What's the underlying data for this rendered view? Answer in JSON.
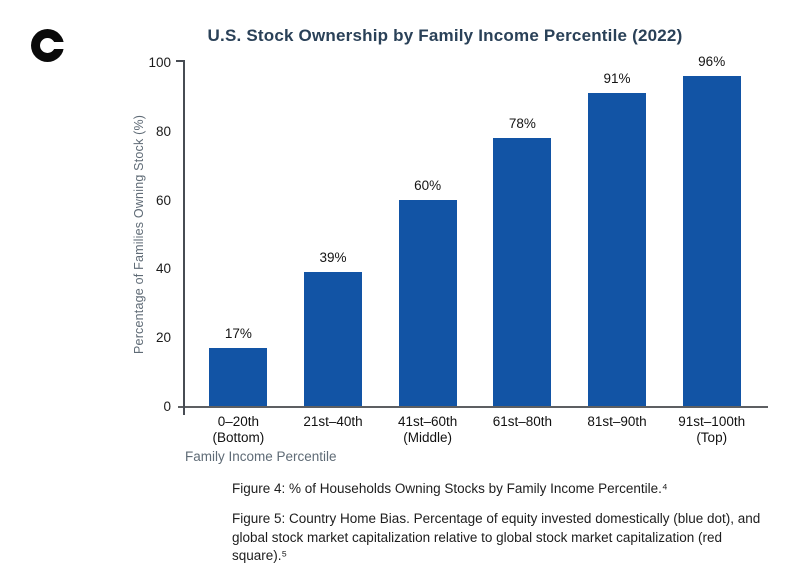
{
  "header": {
    "logo_icon": "c-mark-logo",
    "title": "U.S. Stock Ownership by Family Income Percentile (2022)"
  },
  "chart_data": {
    "type": "bar",
    "title": "U.S. Stock Ownership by Family Income Percentile (2022)",
    "categories": [
      [
        "0–20th",
        "(Bottom)"
      ],
      [
        "21st–40th"
      ],
      [
        "41st–60th",
        "(Middle)"
      ],
      [
        "61st–80th"
      ],
      [
        "81st–90th"
      ],
      [
        "91st–100th",
        "(Top)"
      ]
    ],
    "values": [
      17,
      39,
      60,
      78,
      91,
      96
    ],
    "bar_labels": [
      "17%",
      "39%",
      "60%",
      "78%",
      "91%",
      "96%"
    ],
    "xlabel": "Family Income Percentile",
    "ylabel": "Percentage of Families Owning Stock (%)",
    "yticks": [
      0,
      20,
      40,
      60,
      80,
      100
    ],
    "ylim": [
      0,
      100
    ],
    "grid": false,
    "legend": "none",
    "bar_color": "#1254A5"
  },
  "captions": {
    "figure4": "Figure 4: % of Households Owning Stocks by Family Income Percentile.⁴",
    "figure5": "Figure 5: Country Home Bias. Percentage of equity invested domestically (blue dot), and\nglobal stock market capitalization relative to global stock market capitalization (red\nsquare).⁵"
  },
  "colors": {
    "bar": "#1254A5",
    "title_text": "#2A4158",
    "axis_line": "#474C53",
    "tick_text": "#1B1B1B",
    "muted_label": "#5F6B76",
    "logo": "#0A0A0A",
    "background": "#FFFFFF"
  }
}
